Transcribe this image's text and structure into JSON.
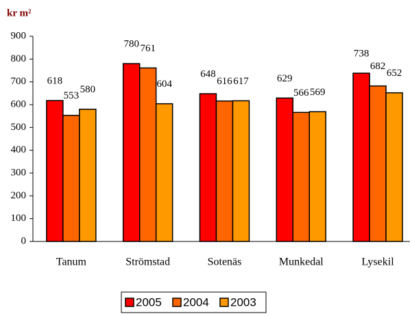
{
  "chart_data": {
    "type": "bar",
    "y_axis_label": "kr m²",
    "categories": [
      "Tanum",
      "Strömstad",
      "Sotenäs",
      "Munkedal",
      "Lysekil"
    ],
    "series": [
      {
        "name": "2005",
        "color": "#ff0000",
        "values": [
          618,
          780,
          648,
          629,
          738
        ]
      },
      {
        "name": "2004",
        "color": "#ff6600",
        "values": [
          553,
          761,
          616,
          566,
          682
        ]
      },
      {
        "name": "2003",
        "color": "#ff9900",
        "values": [
          580,
          604,
          617,
          569,
          652
        ]
      }
    ],
    "ylim": [
      0,
      900
    ],
    "yticks": [
      0,
      100,
      200,
      300,
      400,
      500,
      600,
      700,
      800,
      900
    ],
    "grid": false,
    "legend": "bottom"
  }
}
